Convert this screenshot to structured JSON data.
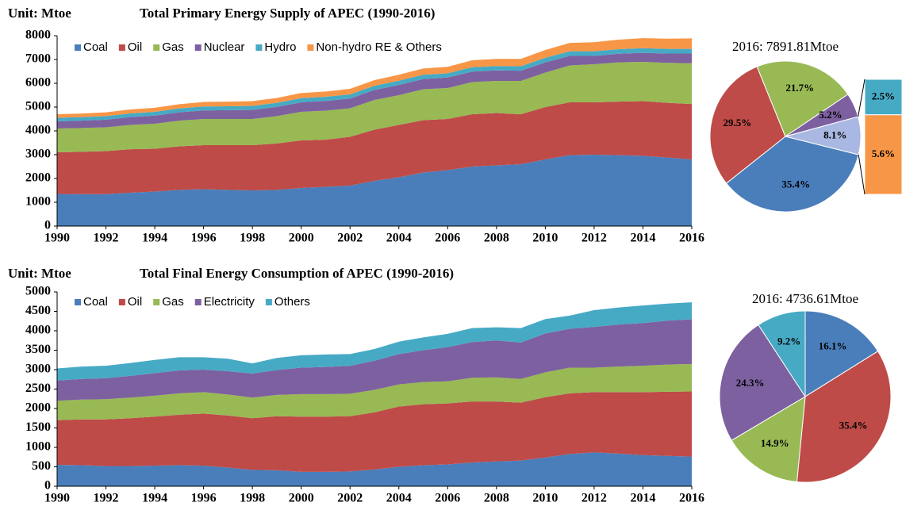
{
  "chart_data": [
    {
      "type": "area",
      "title": "Total Primary Energy Supply of APEC (1990-2016)",
      "unit_label": "Unit: Mtoe",
      "x": [
        1990,
        1991,
        1992,
        1993,
        1994,
        1995,
        1996,
        1997,
        1998,
        1999,
        2000,
        2001,
        2002,
        2003,
        2004,
        2005,
        2006,
        2007,
        2008,
        2009,
        2010,
        2011,
        2012,
        2013,
        2014,
        2015,
        2016
      ],
      "xlim": [
        1990,
        2016
      ],
      "xticks": [
        1990,
        1992,
        1994,
        1996,
        1998,
        2000,
        2002,
        2004,
        2006,
        2008,
        2010,
        2012,
        2014,
        2016
      ],
      "ylim": [
        0,
        8000
      ],
      "yticks": [
        0,
        1000,
        2000,
        3000,
        4000,
        5000,
        6000,
        7000,
        8000
      ],
      "series": [
        {
          "name": "Coal",
          "color": "#4a7ebb",
          "values": [
            1350,
            1340,
            1340,
            1400,
            1450,
            1520,
            1550,
            1520,
            1500,
            1520,
            1600,
            1650,
            1700,
            1900,
            2050,
            2250,
            2350,
            2500,
            2550,
            2600,
            2800,
            2980,
            3000,
            2980,
            2950,
            2880,
            2800
          ]
        },
        {
          "name": "Oil",
          "color": "#be4b48",
          "values": [
            1750,
            1780,
            1810,
            1830,
            1800,
            1830,
            1850,
            1880,
            1900,
            1950,
            2000,
            1980,
            2050,
            2150,
            2200,
            2200,
            2150,
            2200,
            2200,
            2100,
            2200,
            2220,
            2200,
            2250,
            2300,
            2300,
            2330
          ]
        },
        {
          "name": "Gas",
          "color": "#98b954",
          "values": [
            1000,
            1000,
            1000,
            1020,
            1050,
            1080,
            1100,
            1100,
            1100,
            1150,
            1200,
            1220,
            1200,
            1250,
            1250,
            1300,
            1300,
            1350,
            1350,
            1400,
            1450,
            1550,
            1600,
            1650,
            1650,
            1680,
            1710
          ]
        },
        {
          "name": "Nuclear",
          "color": "#7d60a0",
          "values": [
            300,
            310,
            320,
            330,
            340,
            350,
            360,
            370,
            380,
            390,
            400,
            410,
            410,
            420,
            430,
            430,
            440,
            440,
            440,
            430,
            430,
            400,
            350,
            360,
            380,
            390,
            410
          ]
        },
        {
          "name": "Hydro",
          "color": "#46aac5",
          "values": [
            150,
            150,
            150,
            155,
            160,
            160,
            165,
            165,
            170,
            170,
            175,
            175,
            175,
            175,
            180,
            180,
            180,
            185,
            185,
            185,
            190,
            195,
            195,
            195,
            195,
            196,
            197
          ]
        },
        {
          "name": "Non-hydro RE & Others",
          "color": "#f79646",
          "values": [
            150,
            150,
            160,
            165,
            170,
            180,
            190,
            195,
            200,
            205,
            215,
            220,
            230,
            240,
            250,
            260,
            270,
            290,
            300,
            310,
            330,
            350,
            380,
            400,
            420,
            430,
            442
          ]
        }
      ]
    },
    {
      "type": "pie",
      "title": "2016: 7891.81Mtoe",
      "values": [
        35.4,
        29.5,
        21.7,
        5.2,
        8.1
      ],
      "value_labels": [
        "35.4%",
        "29.5%",
        "21.7%",
        "5.2%",
        "8.1%"
      ],
      "colors": [
        "#4a7ebb",
        "#be4b48",
        "#98b954",
        "#7d60a0",
        "#a9b8e2"
      ],
      "breakdown": {
        "values": [
          2.5,
          5.6
        ],
        "value_labels": [
          "2.5%",
          "5.6%"
        ],
        "colors": [
          "#46aac5",
          "#f79646"
        ]
      }
    },
    {
      "type": "area",
      "title": "Total Final Energy Consumption of APEC (1990-2016)",
      "unit_label": "Unit: Mtoe",
      "x": [
        1990,
        1991,
        1992,
        1993,
        1994,
        1995,
        1996,
        1997,
        1998,
        1999,
        2000,
        2001,
        2002,
        2003,
        2004,
        2005,
        2006,
        2007,
        2008,
        2009,
        2010,
        2011,
        2012,
        2013,
        2014,
        2015,
        2016
      ],
      "xlim": [
        1990,
        2016
      ],
      "xticks": [
        1990,
        1992,
        1994,
        1996,
        1998,
        2000,
        2002,
        2004,
        2006,
        2008,
        2010,
        2012,
        2014,
        2016
      ],
      "ylim": [
        0,
        5000
      ],
      "yticks": [
        0,
        500,
        1000,
        1500,
        2000,
        2500,
        3000,
        3500,
        4000,
        4500,
        5000
      ],
      "series": [
        {
          "name": "Coal",
          "color": "#4a7ebb",
          "values": [
            550,
            540,
            520,
            520,
            530,
            540,
            530,
            480,
            420,
            410,
            370,
            370,
            380,
            430,
            500,
            540,
            560,
            610,
            640,
            660,
            740,
            830,
            870,
            840,
            800,
            780,
            763
          ]
        },
        {
          "name": "Oil",
          "color": "#be4b48",
          "values": [
            1150,
            1180,
            1200,
            1230,
            1260,
            1300,
            1340,
            1340,
            1330,
            1390,
            1420,
            1420,
            1420,
            1470,
            1550,
            1570,
            1570,
            1570,
            1540,
            1490,
            1550,
            1560,
            1550,
            1580,
            1620,
            1650,
            1677
          ]
        },
        {
          "name": "Gas",
          "color": "#98b954",
          "values": [
            500,
            510,
            520,
            530,
            540,
            550,
            550,
            540,
            530,
            550,
            580,
            580,
            580,
            580,
            570,
            570,
            570,
            610,
            620,
            610,
            640,
            660,
            630,
            660,
            680,
            700,
            706
          ]
        },
        {
          "name": "Electricity",
          "color": "#7d60a0",
          "values": [
            520,
            530,
            540,
            560,
            580,
            590,
            580,
            600,
            620,
            640,
            680,
            700,
            720,
            750,
            780,
            820,
            880,
            920,
            950,
            940,
            1000,
            1000,
            1050,
            1080,
            1100,
            1130,
            1151
          ]
        },
        {
          "name": "Others",
          "color": "#46aac5",
          "values": [
            310,
            320,
            320,
            330,
            340,
            340,
            320,
            320,
            260,
            310,
            320,
            320,
            300,
            300,
            320,
            330,
            340,
            360,
            340,
            370,
            370,
            340,
            430,
            440,
            450,
            440,
            436
          ]
        }
      ]
    },
    {
      "type": "pie",
      "title": "2016: 4736.61Mtoe",
      "values": [
        16.1,
        35.4,
        14.9,
        24.3,
        9.2
      ],
      "value_labels": [
        "16.1%",
        "35.4%",
        "14.9%",
        "24.3%",
        "9.2%"
      ],
      "colors": [
        "#4a7ebb",
        "#be4b48",
        "#98b954",
        "#7d60a0",
        "#46aac5"
      ]
    }
  ]
}
